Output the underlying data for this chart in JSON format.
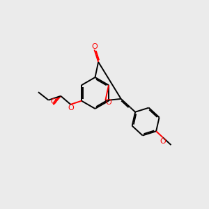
{
  "bg_color": "#ebebeb",
  "bond_color": "#000000",
  "oxygen_color": "#ff0000",
  "line_width": 1.4,
  "dbo": 0.055,
  "figsize": [
    3.0,
    3.0
  ],
  "dpi": 100,
  "xlim": [
    0,
    10
  ],
  "ylim": [
    0,
    10
  ]
}
